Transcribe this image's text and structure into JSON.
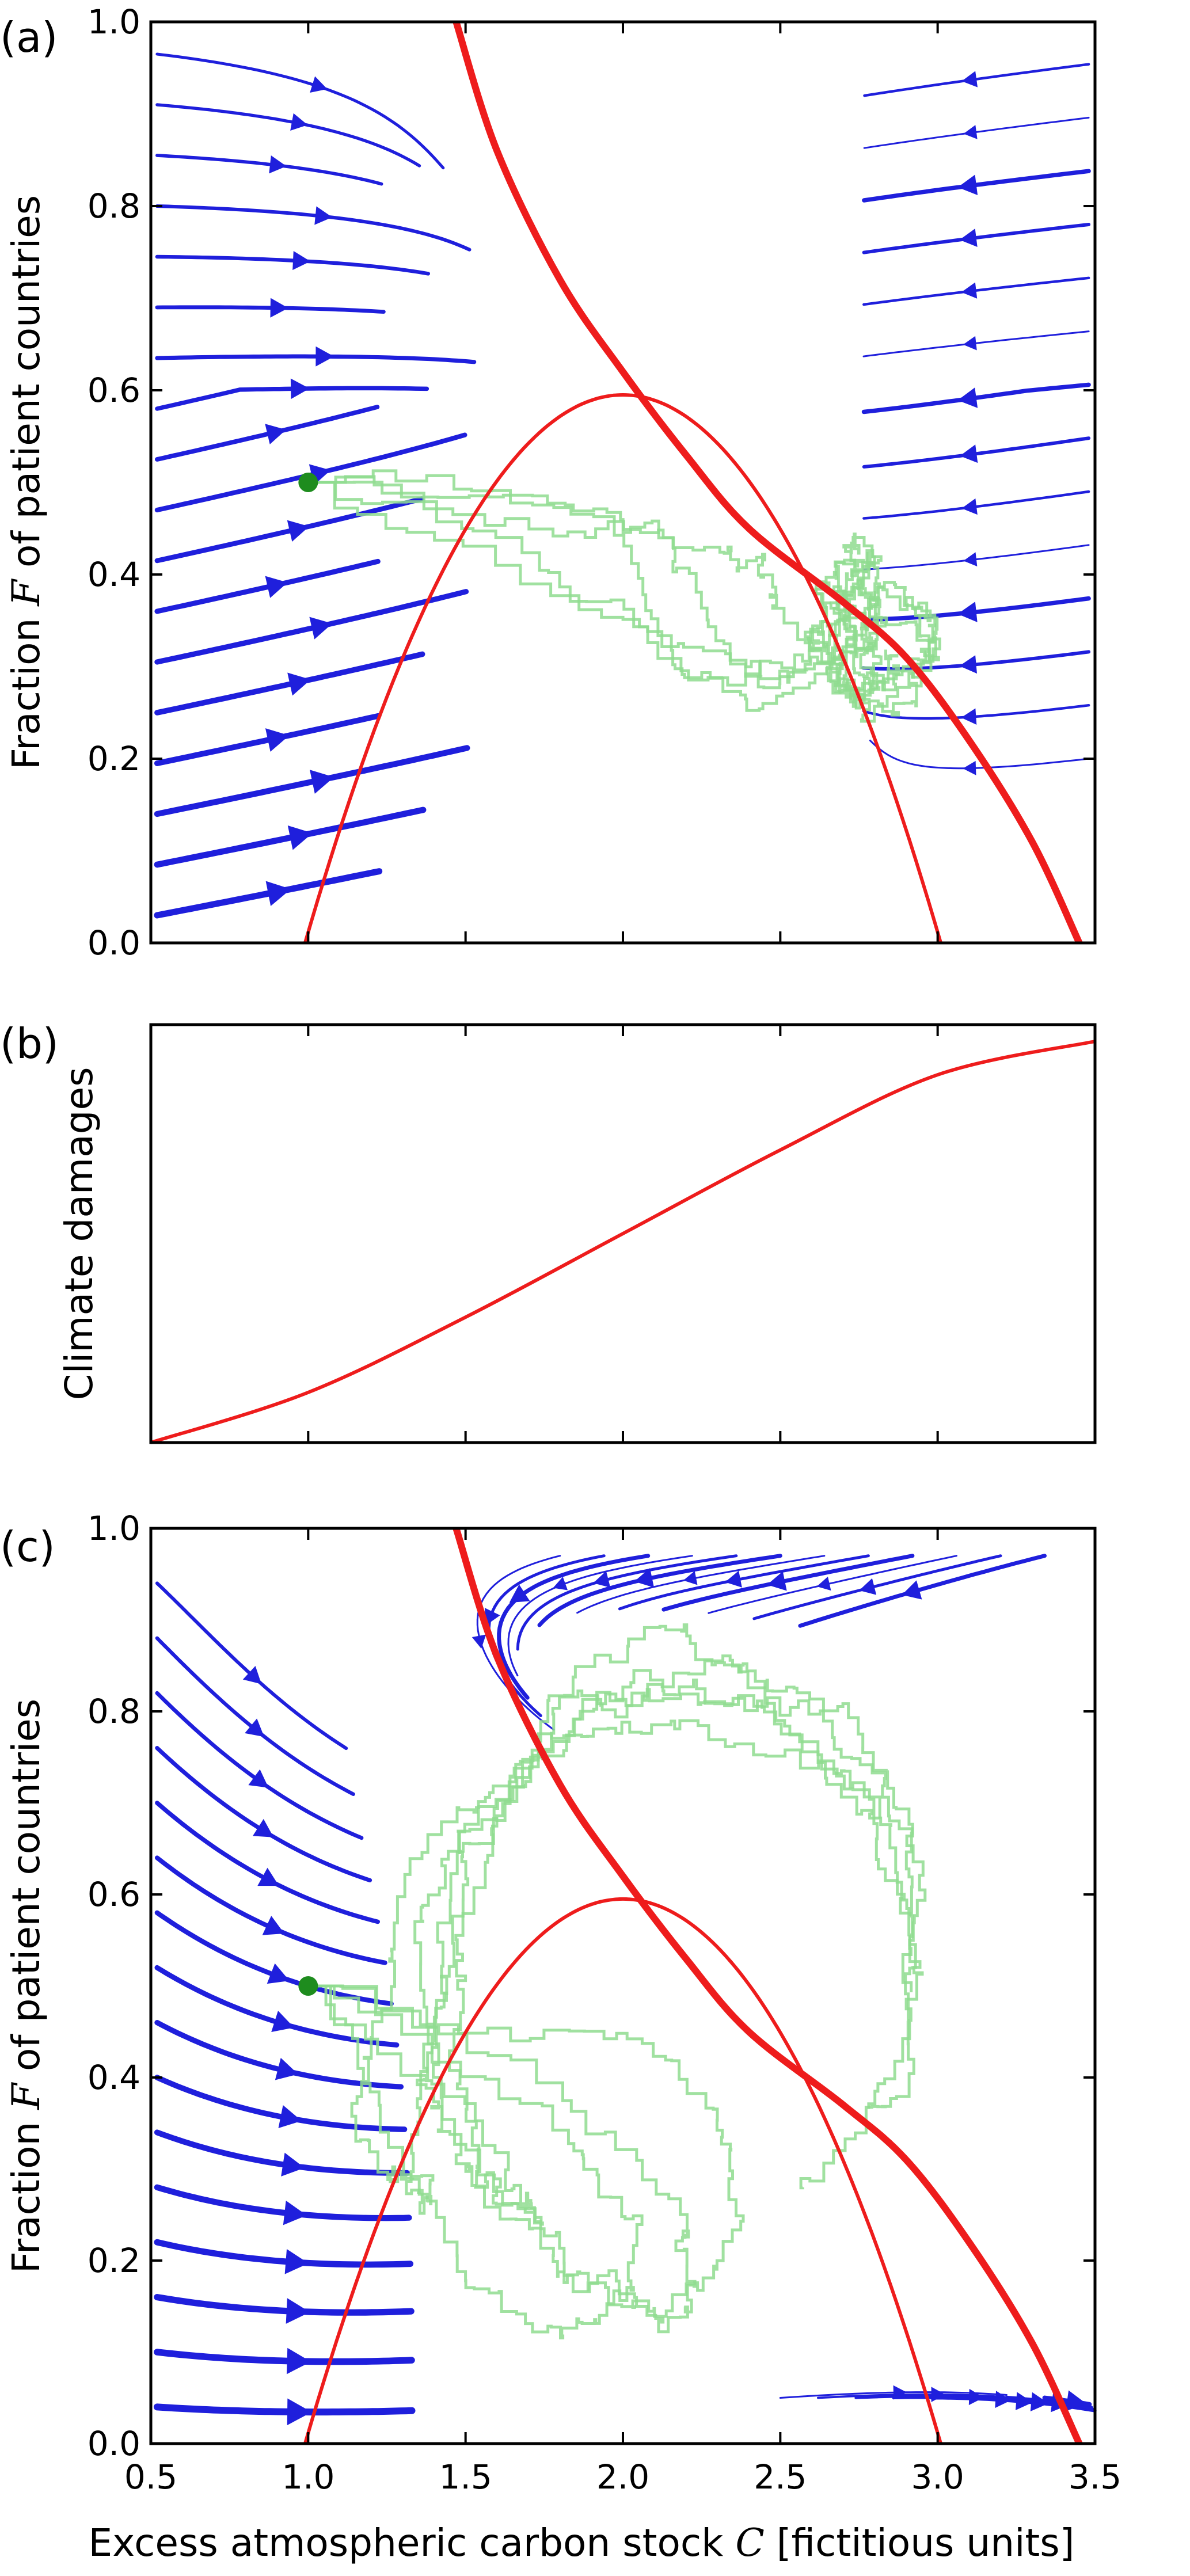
{
  "chart_data": [
    {
      "panel_label": "(a)",
      "type": "streamplot",
      "ylabel": "Fraction F of patient countries",
      "xlim": [
        0.5,
        3.5
      ],
      "ylim": [
        0.0,
        1.0
      ],
      "yticks": [
        "0.0",
        "0.2",
        "0.4",
        "0.6",
        "0.8",
        "1.0"
      ],
      "xticks": [
        1.0,
        1.5,
        2.0,
        2.5,
        3.0,
        3.5
      ],
      "nullcline_a": {
        "vertex": [
          2.0,
          0.595
        ],
        "roots": [
          0.99,
          3.01
        ]
      },
      "nullcline_b": [
        [
          1.47,
          1.0
        ],
        [
          1.6,
          0.86
        ],
        [
          1.8,
          0.72
        ],
        [
          2.0,
          0.62
        ],
        [
          2.2,
          0.53
        ],
        [
          2.4,
          0.45
        ],
        [
          2.7,
          0.37
        ],
        [
          2.9,
          0.31
        ],
        [
          3.1,
          0.22
        ],
        [
          3.3,
          0.11
        ],
        [
          3.45,
          0.0
        ]
      ],
      "start_point": [
        1.0,
        0.5
      ],
      "colors": {
        "stream": "#1f1fdc",
        "nullcline": "#ee1c1c",
        "trajectory": "#8fdc8f",
        "start": "#1e8c1e"
      }
    },
    {
      "panel_label": "(b)",
      "type": "line",
      "ylabel": "Climate damages",
      "xlim": [
        0.5,
        3.5
      ],
      "xticks": [
        1.0,
        1.5,
        2.0,
        2.5,
        3.0,
        3.5
      ],
      "x": [
        0.5,
        1.0,
        1.5,
        2.0,
        2.5,
        3.0,
        3.5
      ],
      "y": [
        0.0,
        0.12,
        0.3,
        0.5,
        0.7,
        0.88,
        0.96
      ],
      "ylim": [
        0.0,
        1.0
      ]
    },
    {
      "panel_label": "(c)",
      "type": "streamplot",
      "ylabel": "Fraction F of patient countries",
      "xlabel": "Excess atmospheric carbon stock C [fictitious units]",
      "xlim": [
        0.5,
        3.5
      ],
      "ylim": [
        0.0,
        1.0
      ],
      "yticks": [
        "0.0",
        "0.2",
        "0.4",
        "0.6",
        "0.8",
        "1.0"
      ],
      "xticks": [
        "0.5",
        "1.0",
        "1.5",
        "2.0",
        "2.5",
        "3.0",
        "3.5"
      ],
      "nullcline_a": {
        "vertex": [
          2.0,
          0.595
        ],
        "roots": [
          0.99,
          3.01
        ]
      },
      "nullcline_b": [
        [
          1.47,
          1.0
        ],
        [
          1.6,
          0.86
        ],
        [
          1.8,
          0.72
        ],
        [
          2.0,
          0.62
        ],
        [
          2.2,
          0.53
        ],
        [
          2.4,
          0.45
        ],
        [
          2.7,
          0.37
        ],
        [
          2.9,
          0.31
        ],
        [
          3.1,
          0.22
        ],
        [
          3.3,
          0.11
        ],
        [
          3.45,
          0.0
        ]
      ],
      "start_point": [
        1.0,
        0.5
      ],
      "colors": {
        "stream": "#1f1fdc",
        "nullcline": "#ee1c1c",
        "trajectory": "#8fdc8f",
        "start": "#1e8c1e"
      }
    }
  ]
}
